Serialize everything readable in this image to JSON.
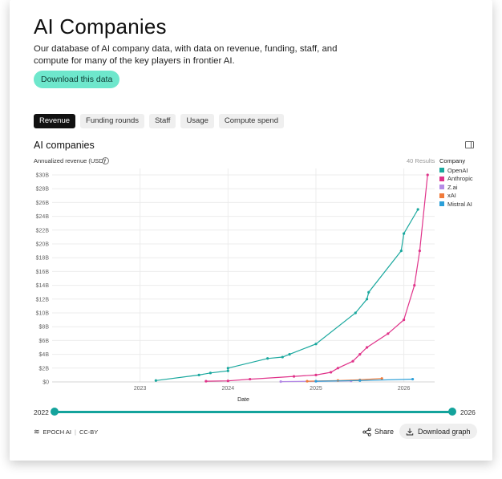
{
  "page": {
    "title": "AI Companies",
    "description": "Our database of AI company data, with data on revenue, funding, staff, and compute for many of the key players in frontier AI.",
    "download_button": "Download this data"
  },
  "tabs": [
    {
      "label": "Revenue",
      "active": true
    },
    {
      "label": "Funding rounds",
      "active": false
    },
    {
      "label": "Staff",
      "active": false
    },
    {
      "label": "Usage",
      "active": false
    },
    {
      "label": "Compute spend",
      "active": false
    }
  ],
  "section_title": "AI companies",
  "info_icon_glyph": "i",
  "results_count": "40 Results",
  "slider": {
    "start_label": "2022",
    "end_label": "2026",
    "range_start_fraction": 0,
    "range_end_fraction": 1
  },
  "footer": {
    "logo_glyph": "≋",
    "brand": "EPOCH AI",
    "separator": "|",
    "license": "CC-BY",
    "share_label": "Share",
    "download_graph_label": "Download graph"
  },
  "icons": {
    "panel": "panel-toggle-icon",
    "share": "share-icon",
    "download": "download-icon",
    "info": "info-icon"
  },
  "colors": {
    "accent": "#14a39c",
    "download_button": "#6ee7cc",
    "OpenAI": "#1aa89e",
    "Anthropic": "#e0338a",
    "Z.ai": "#b58be6",
    "xAI": "#f07a3a",
    "Mistral AI": "#2b9fd8"
  },
  "chart_data": {
    "type": "line",
    "ylabel": "Annualized revenue (USD)",
    "xlabel": "Date",
    "legend_title": "Company",
    "legend_position": "right",
    "grid": true,
    "x_range": [
      2022,
      2026.35
    ],
    "ylim": [
      0,
      30
    ],
    "y_unit": "billion USD",
    "y_ticks": [
      "$0",
      "$2B",
      "$4B",
      "$6B",
      "$8B",
      "$10B",
      "$12B",
      "$14B",
      "$16B",
      "$18B",
      "$20B",
      "$22B",
      "$24B",
      "$26B",
      "$28B",
      "$30B"
    ],
    "x_ticks": [
      "2023",
      "2024",
      "2025",
      "2026"
    ],
    "series": [
      {
        "name": "OpenAI",
        "color": "#1aa89e",
        "points": [
          [
            2023.18,
            0.2
          ],
          [
            2023.67,
            1.0
          ],
          [
            2023.8,
            1.3
          ],
          [
            2024.0,
            1.6
          ],
          [
            2024.0,
            2.0
          ],
          [
            2024.45,
            3.4
          ],
          [
            2024.62,
            3.6
          ],
          [
            2024.7,
            4.0
          ],
          [
            2025.0,
            5.5
          ],
          [
            2025.45,
            10.0
          ],
          [
            2025.58,
            12.0
          ],
          [
            2025.6,
            13.0
          ],
          [
            2025.97,
            19.0
          ],
          [
            2026.0,
            21.5
          ],
          [
            2026.16,
            25.0
          ]
        ]
      },
      {
        "name": "Anthropic",
        "color": "#e0338a",
        "points": [
          [
            2023.75,
            0.1
          ],
          [
            2024.0,
            0.15
          ],
          [
            2024.25,
            0.4
          ],
          [
            2024.75,
            0.8
          ],
          [
            2025.0,
            1.0
          ],
          [
            2025.17,
            1.4
          ],
          [
            2025.25,
            2.0
          ],
          [
            2025.42,
            3.0
          ],
          [
            2025.5,
            4.0
          ],
          [
            2025.58,
            5.0
          ],
          [
            2025.82,
            7.0
          ],
          [
            2026.0,
            9.0
          ],
          [
            2026.12,
            14.0
          ],
          [
            2026.18,
            19.0
          ],
          [
            2026.27,
            30.0
          ]
        ]
      },
      {
        "name": "Z.ai",
        "color": "#b58be6",
        "points": [
          [
            2024.6,
            0.05
          ],
          [
            2025.0,
            0.1
          ],
          [
            2025.4,
            0.15
          ]
        ]
      },
      {
        "name": "xAI",
        "color": "#f07a3a",
        "points": [
          [
            2024.9,
            0.1
          ],
          [
            2025.25,
            0.2
          ],
          [
            2025.5,
            0.3
          ],
          [
            2025.75,
            0.5
          ]
        ]
      },
      {
        "name": "Mistral AI",
        "color": "#2b9fd8",
        "points": [
          [
            2025.0,
            0.1
          ],
          [
            2025.5,
            0.2
          ],
          [
            2026.1,
            0.4
          ]
        ]
      }
    ]
  }
}
